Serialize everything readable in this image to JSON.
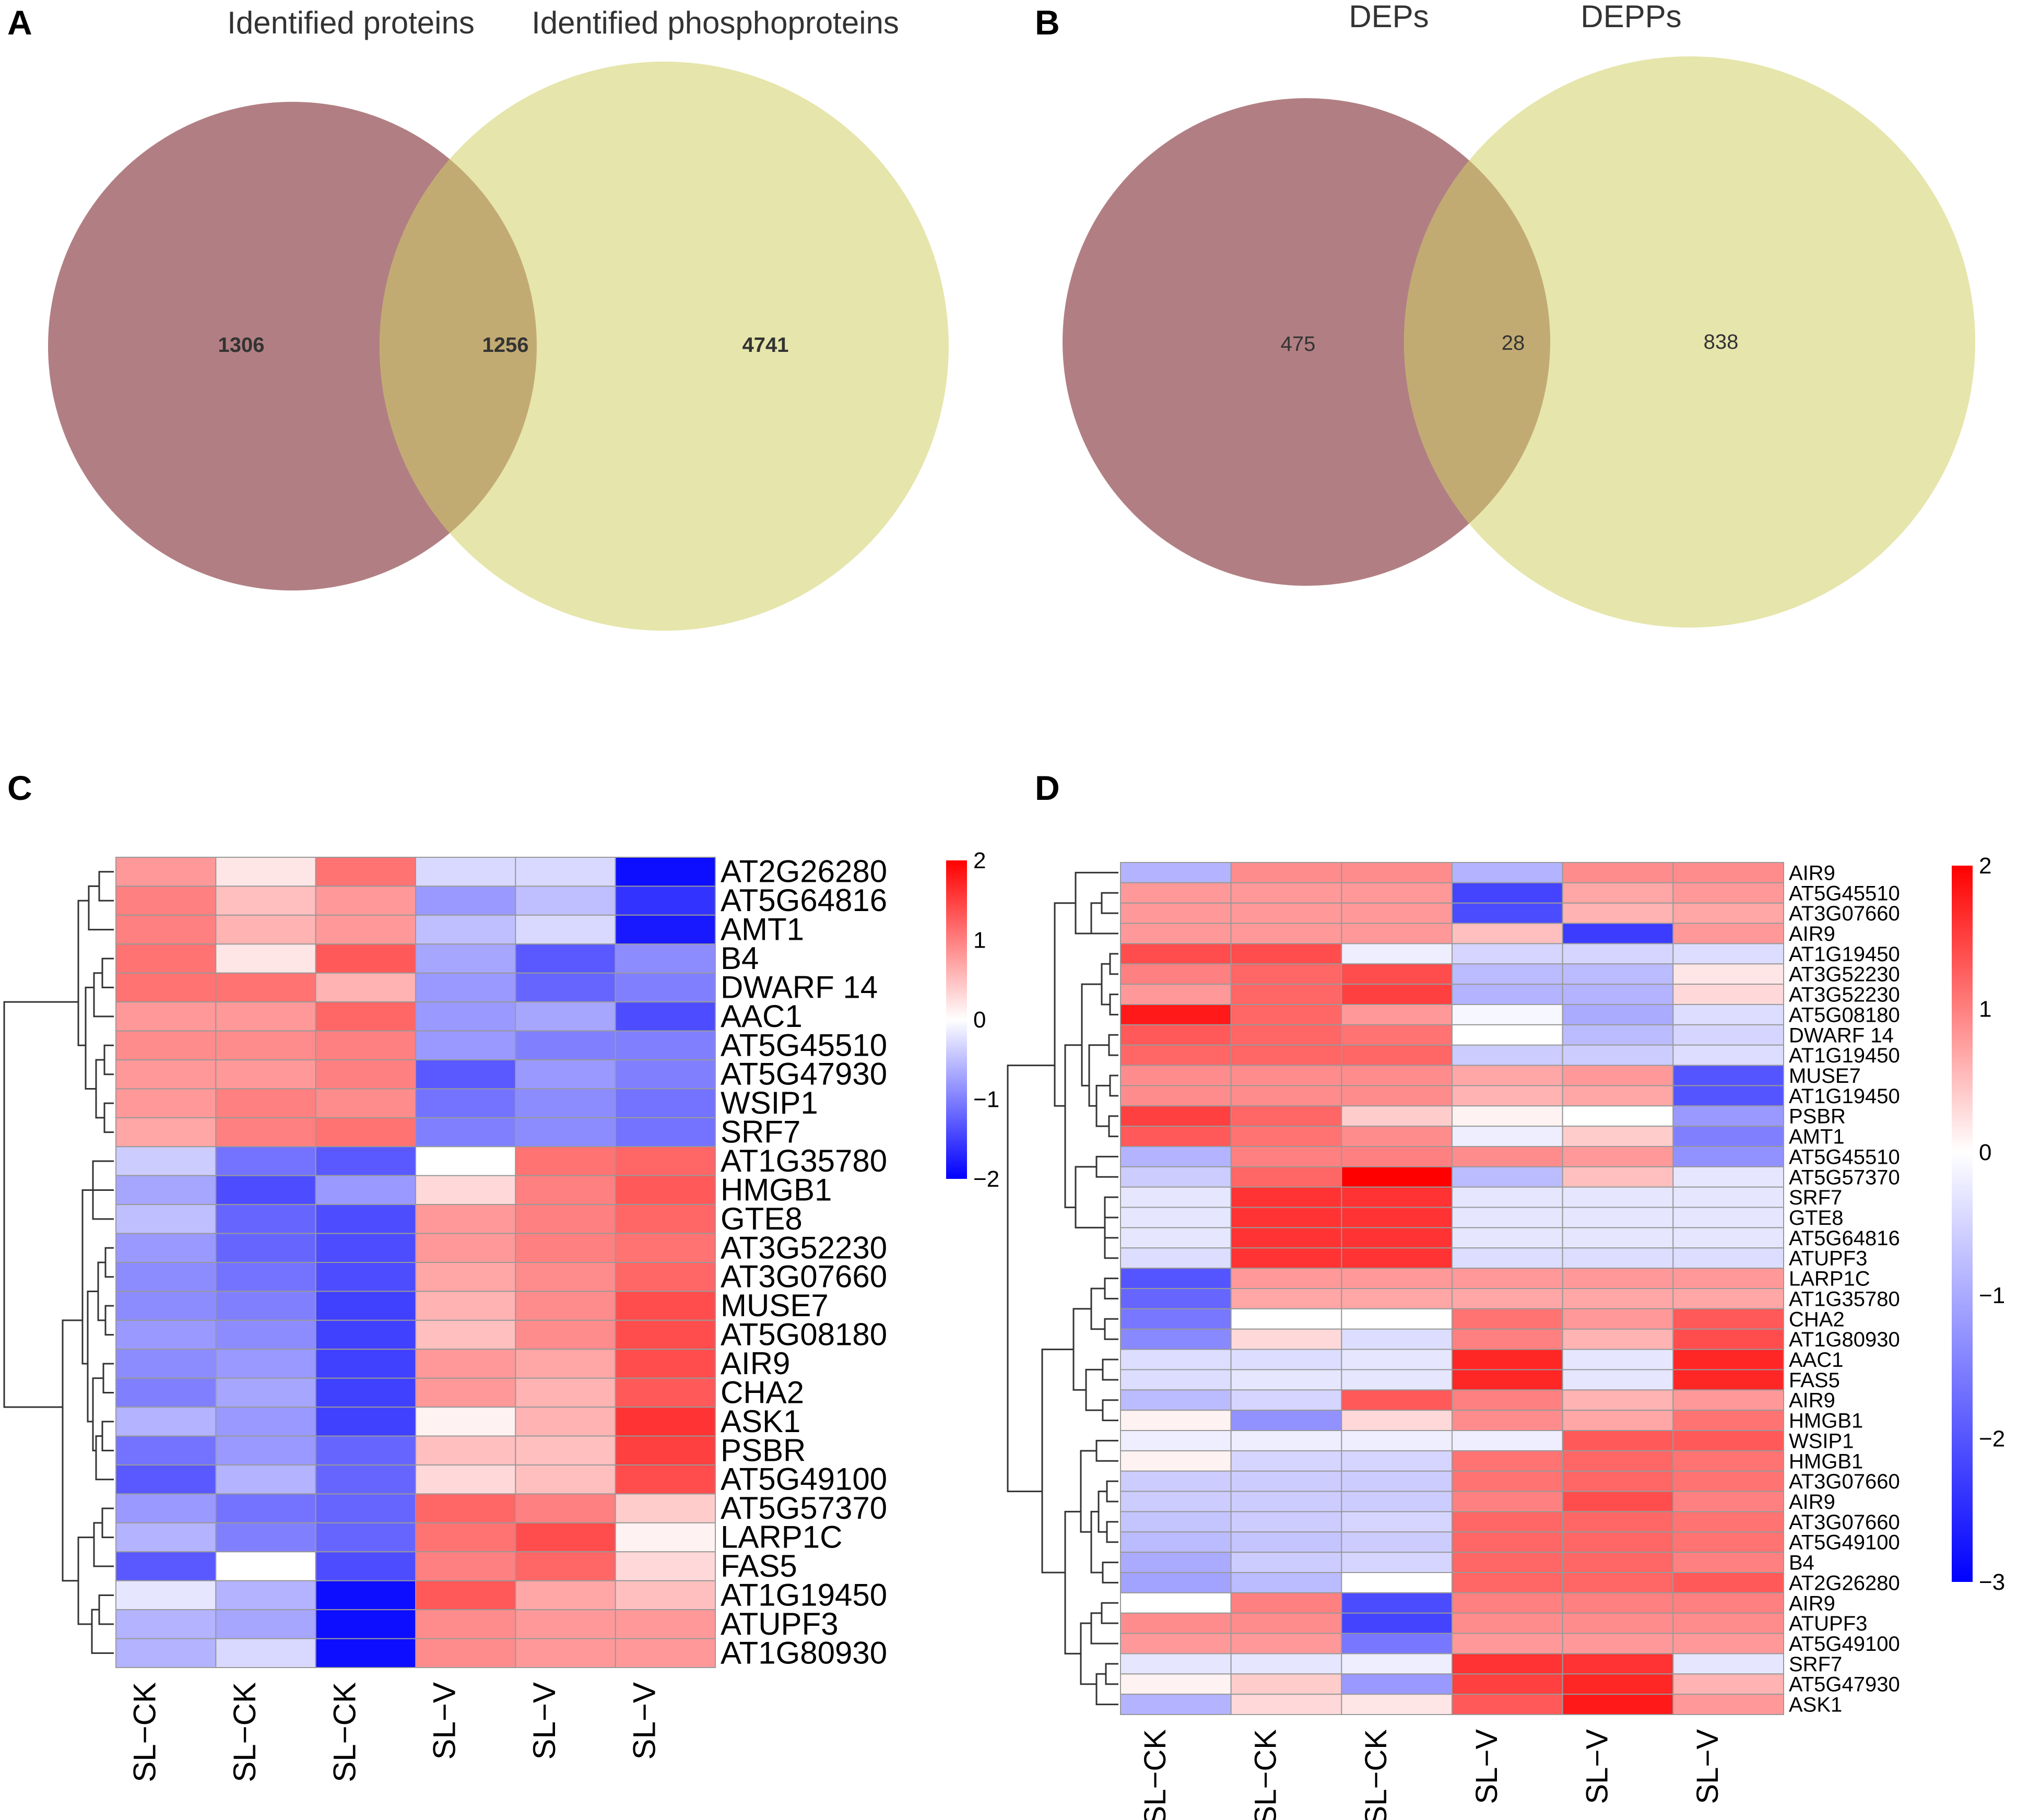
{
  "panels": {
    "A": {
      "letter": "A",
      "left_title": "Identified proteins",
      "right_title": "Identified phosphoproteins",
      "left_only": "1306",
      "overlap": "1256",
      "right_only": "4741"
    },
    "B": {
      "letter": "B",
      "left_title": "DEPs",
      "right_title": "DEPPs",
      "left_only": "475",
      "overlap": "28",
      "right_only": "838"
    },
    "C": {
      "letter": "C"
    },
    "D": {
      "letter": "D"
    }
  },
  "colors": {
    "venn_left": "#b17f83",
    "venn_right": "#e6e5ab",
    "venn_overlap": "#c2ab73",
    "heat_low": "#0000ff",
    "heat_mid": "#ffffff",
    "heat_high": "#ff0000",
    "cell_border": "#999999"
  },
  "chart_data": [
    {
      "type": "venn",
      "panel": "A",
      "sets": [
        "Identified proteins",
        "Identified phosphoproteins"
      ],
      "values": {
        "left_only": 1306,
        "overlap": 1256,
        "right_only": 4741
      }
    },
    {
      "type": "venn",
      "panel": "B",
      "sets": [
        "DEPs",
        "DEPPs"
      ],
      "values": {
        "left_only": 475,
        "overlap": 28,
        "right_only": 838
      }
    },
    {
      "type": "heatmap",
      "panel": "C",
      "columns": [
        "SL−CK",
        "SL−CK",
        "SL−CK",
        "SL−V",
        "SL−V",
        "SL−V"
      ],
      "rows": [
        "AT2G26280",
        "AT5G64816",
        "AMT1",
        "B4",
        "DWARF 14",
        "AAC1",
        "AT5G45510",
        "AT5G47930",
        "WSIP1",
        "SRF7",
        "AT1G35780",
        "HMGB1",
        "GTE8",
        "AT3G52230",
        "AT3G07660",
        "MUSE7",
        "AT5G08180",
        "AIR9",
        "CHA2",
        "ASK1",
        "PSBR",
        "AT5G49100",
        "AT5G57370",
        "LARP1C",
        "FAS5",
        "AT1G19450",
        "ATUPF3",
        "AT1G80930"
      ],
      "values": [
        [
          0.8,
          0.2,
          1.1,
          -0.3,
          -0.3,
          -1.9
        ],
        [
          1.0,
          0.5,
          0.8,
          -0.8,
          -0.5,
          -1.6
        ],
        [
          1.0,
          0.6,
          0.8,
          -0.5,
          -0.3,
          -1.8
        ],
        [
          1.1,
          0.2,
          1.3,
          -0.7,
          -1.3,
          -0.9
        ],
        [
          1.1,
          1.1,
          0.6,
          -0.8,
          -1.2,
          -1.0
        ],
        [
          0.8,
          0.8,
          1.2,
          -0.8,
          -0.7,
          -1.4
        ],
        [
          0.9,
          0.9,
          1.0,
          -0.8,
          -1.0,
          -1.0
        ],
        [
          0.8,
          0.8,
          1.0,
          -1.3,
          -0.8,
          -1.0
        ],
        [
          0.8,
          1.0,
          0.9,
          -1.1,
          -0.9,
          -1.1
        ],
        [
          0.7,
          1.0,
          1.1,
          -1.0,
          -0.9,
          -1.1
        ],
        [
          -0.4,
          -1.1,
          -1.3,
          0.0,
          1.1,
          1.2
        ],
        [
          -0.7,
          -1.4,
          -0.8,
          0.3,
          1.0,
          1.3
        ],
        [
          -0.5,
          -1.2,
          -1.4,
          0.8,
          1.0,
          1.2
        ],
        [
          -0.8,
          -1.2,
          -1.4,
          0.8,
          1.0,
          1.1
        ],
        [
          -0.9,
          -1.1,
          -1.4,
          0.7,
          0.9,
          1.2
        ],
        [
          -0.9,
          -1.0,
          -1.5,
          0.6,
          0.9,
          1.4
        ],
        [
          -0.8,
          -0.9,
          -1.5,
          0.5,
          0.9,
          1.4
        ],
        [
          -0.9,
          -0.8,
          -1.5,
          0.8,
          0.7,
          1.4
        ],
        [
          -1.0,
          -0.7,
          -1.5,
          0.8,
          0.6,
          1.3
        ],
        [
          -0.6,
          -0.8,
          -1.5,
          0.1,
          0.6,
          1.6
        ],
        [
          -1.1,
          -0.8,
          -1.2,
          0.5,
          0.5,
          1.5
        ],
        [
          -1.3,
          -0.6,
          -1.2,
          0.3,
          0.5,
          1.4
        ],
        [
          -0.8,
          -1.1,
          -1.2,
          1.2,
          1.0,
          0.4
        ],
        [
          -0.6,
          -1.0,
          -1.2,
          1.1,
          1.4,
          0.1
        ],
        [
          -1.3,
          0.0,
          -1.4,
          1.0,
          1.2,
          0.3
        ],
        [
          -0.2,
          -0.6,
          -1.9,
          1.3,
          0.7,
          0.5
        ],
        [
          -0.6,
          -0.7,
          -1.9,
          0.9,
          0.8,
          0.8
        ],
        [
          -0.6,
          -0.3,
          -1.9,
          0.9,
          0.8,
          0.8
        ]
      ],
      "colorbar": {
        "ticks": [
          "2",
          "1",
          "0",
          "−1",
          "−2"
        ],
        "range": [
          -2,
          2
        ]
      }
    },
    {
      "type": "heatmap",
      "panel": "D",
      "columns": [
        "SL−CK",
        "SL−CK",
        "SL−CK",
        "SL−V",
        "SL−V",
        "SL−V"
      ],
      "rows": [
        "AIR9",
        "AT5G45510",
        "AT3G07660",
        "AIR9",
        "AT1G19450",
        "AT3G52230",
        "AT3G52230",
        "AT5G08180",
        "DWARF 14",
        "AT1G19450",
        "MUSE7",
        "AT1G19450",
        "PSBR",
        "AMT1",
        "AT5G45510",
        "AT5G57370",
        "SRF7",
        "GTE8",
        "AT5G64816",
        "ATUPF3",
        "LARP1C",
        "AT1G35780",
        "CHA2",
        "AT1G80930",
        "AAC1",
        "FAS5",
        "AIR9",
        "HMGB1",
        "WSIP1",
        "HMGB1",
        "AT3G07660",
        "AIR9",
        "AT3G07660",
        "AT5G49100",
        "B4",
        "AT2G26280",
        "AIR9",
        "ATUPF3",
        "AT5G49100",
        "SRF7",
        "AT5G47930",
        "ASK1"
      ],
      "values": [
        [
          -0.9,
          0.9,
          0.9,
          -0.9,
          0.9,
          0.9
        ],
        [
          0.8,
          0.8,
          0.8,
          -2.2,
          0.7,
          0.8
        ],
        [
          0.8,
          0.8,
          0.8,
          -2.1,
          0.6,
          0.7
        ],
        [
          0.8,
          0.8,
          0.8,
          0.5,
          -2.3,
          0.8
        ],
        [
          1.4,
          1.4,
          -0.2,
          -0.5,
          -0.5,
          -0.4
        ],
        [
          1.0,
          1.2,
          1.4,
          -0.8,
          -0.8,
          0.2
        ],
        [
          0.8,
          1.2,
          1.5,
          -0.9,
          -0.9,
          0.3
        ],
        [
          1.8,
          1.2,
          0.8,
          -0.1,
          -1.0,
          -0.4
        ],
        [
          1.3,
          1.2,
          1.1,
          0.0,
          -0.8,
          -0.5
        ],
        [
          1.2,
          1.2,
          1.2,
          -0.6,
          -0.6,
          -0.4
        ],
        [
          0.9,
          0.9,
          0.9,
          0.7,
          0.8,
          -2.0
        ],
        [
          0.9,
          0.9,
          0.9,
          0.6,
          0.7,
          -2.0
        ],
        [
          1.5,
          1.2,
          0.4,
          0.1,
          0.0,
          -1.2
        ],
        [
          1.3,
          1.1,
          0.9,
          -0.2,
          0.4,
          -1.5
        ],
        [
          -0.9,
          1.0,
          1.0,
          0.9,
          0.8,
          -1.3
        ],
        [
          -0.6,
          1.2,
          2.0,
          -0.8,
          0.5,
          -0.3
        ],
        [
          -0.3,
          1.6,
          1.6,
          -0.3,
          -0.3,
          -0.3
        ],
        [
          -0.3,
          1.6,
          1.6,
          -0.3,
          -0.3,
          -0.3
        ],
        [
          -0.3,
          1.6,
          1.6,
          -0.3,
          -0.3,
          -0.3
        ],
        [
          -0.4,
          1.6,
          1.6,
          -0.4,
          -0.4,
          -0.4
        ],
        [
          -2.0,
          0.8,
          0.8,
          0.8,
          0.8,
          0.8
        ],
        [
          -1.8,
          0.7,
          0.7,
          0.7,
          0.7,
          0.7
        ],
        [
          -1.6,
          0.0,
          0.0,
          1.1,
          0.8,
          1.3
        ],
        [
          -1.4,
          0.3,
          -0.4,
          1.0,
          0.6,
          1.4
        ],
        [
          -0.4,
          -0.4,
          -0.3,
          1.7,
          -0.3,
          1.7
        ],
        [
          -0.4,
          -0.3,
          -0.3,
          1.7,
          -0.3,
          1.7
        ],
        [
          -0.8,
          -0.5,
          1.3,
          1.0,
          0.6,
          0.8
        ],
        [
          0.1,
          -1.3,
          0.3,
          0.9,
          0.7,
          1.1
        ],
        [
          -0.2,
          -0.2,
          -0.2,
          -0.2,
          1.3,
          1.3
        ],
        [
          0.1,
          -0.5,
          -0.5,
          1.1,
          1.2,
          1.1
        ],
        [
          -0.6,
          -0.6,
          -0.6,
          1.1,
          1.2,
          1.1
        ],
        [
          -0.6,
          -0.6,
          -0.6,
          1.0,
          1.4,
          1.0
        ],
        [
          -0.7,
          -0.6,
          -0.5,
          1.2,
          1.2,
          1.1
        ],
        [
          -0.8,
          -0.7,
          -0.6,
          1.2,
          1.2,
          1.1
        ],
        [
          -1.0,
          -0.6,
          -0.5,
          1.2,
          1.2,
          1.0
        ],
        [
          -1.1,
          -0.8,
          0.0,
          1.2,
          1.2,
          1.3
        ],
        [
          0.0,
          1.0,
          -2.1,
          1.0,
          1.0,
          1.0
        ],
        [
          0.9,
          0.9,
          -2.2,
          0.9,
          0.9,
          0.9
        ],
        [
          0.8,
          0.8,
          -1.6,
          0.8,
          0.8,
          0.8
        ],
        [
          -0.3,
          -0.3,
          -0.2,
          1.6,
          1.6,
          -0.3
        ],
        [
          0.1,
          0.4,
          -1.2,
          1.5,
          1.7,
          0.6
        ],
        [
          -0.9,
          0.3,
          0.2,
          1.3,
          1.8,
          0.8
        ]
      ],
      "colorbar": {
        "ticks": [
          "2",
          "1",
          "0",
          "−1",
          "−2",
          "−3"
        ],
        "range": [
          -3,
          2
        ]
      }
    }
  ]
}
